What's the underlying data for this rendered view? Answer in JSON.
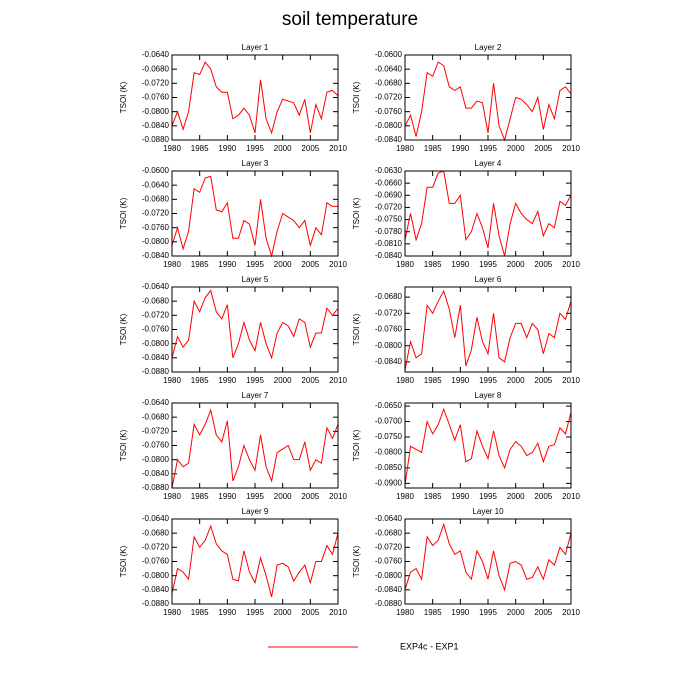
{
  "title": "soil temperature",
  "legend": {
    "name": "EXP4c - EXP1",
    "color": "#ff0000"
  },
  "chart_data": [
    {
      "type": "line",
      "title": "Layer 1",
      "ylabel": "TSOI  (K)",
      "color": "#ff0000",
      "x": [
        1980,
        1981,
        1982,
        1983,
        1984,
        1985,
        1986,
        1987,
        1988,
        1989,
        1990,
        1991,
        1992,
        1993,
        1994,
        1995,
        1996,
        1997,
        1998,
        1999,
        2000,
        2001,
        2002,
        2003,
        2004,
        2005,
        2006,
        2007,
        2008,
        2009,
        2010
      ],
      "values": [
        -0.084,
        -0.08,
        -0.085,
        -0.08,
        -0.069,
        -0.0695,
        -0.066,
        -0.068,
        -0.073,
        -0.0745,
        -0.0745,
        -0.082,
        -0.081,
        -0.079,
        -0.081,
        -0.086,
        -0.071,
        -0.082,
        -0.086,
        -0.08,
        -0.0765,
        -0.077,
        -0.0775,
        -0.081,
        -0.0765,
        -0.086,
        -0.078,
        -0.082,
        -0.0745,
        -0.074,
        -0.0755
      ],
      "xlim": [
        1980,
        2010
      ],
      "xticks": [
        1980,
        1985,
        1990,
        1995,
        2000,
        2005,
        2010
      ],
      "ylim": [
        -0.088,
        -0.064
      ],
      "yticks": [
        {
          "value": -0.064,
          "label": "-0.0640"
        },
        {
          "value": -0.068,
          "label": "-0.0680"
        },
        {
          "value": -0.072,
          "label": "-0.0720"
        },
        {
          "value": -0.076,
          "label": "-0.0760"
        },
        {
          "value": -0.08,
          "label": "-0.0800"
        },
        {
          "value": -0.084,
          "label": "-0.0840"
        },
        {
          "value": -0.088,
          "label": "-0.0880"
        }
      ]
    },
    {
      "type": "line",
      "title": "Layer 2",
      "ylabel": "TSOI  (K)",
      "color": "#ff0000",
      "x": [
        1980,
        1981,
        1982,
        1983,
        1984,
        1985,
        1986,
        1987,
        1988,
        1989,
        1990,
        1991,
        1992,
        1993,
        1994,
        1995,
        1996,
        1997,
        1998,
        1999,
        2000,
        2001,
        2002,
        2003,
        2004,
        2005,
        2006,
        2007,
        2008,
        2009,
        2010
      ],
      "values": [
        -0.08,
        -0.077,
        -0.083,
        -0.076,
        -0.065,
        -0.066,
        -0.062,
        -0.063,
        -0.069,
        -0.07,
        -0.069,
        -0.075,
        -0.075,
        -0.073,
        -0.0735,
        -0.082,
        -0.068,
        -0.08,
        -0.084,
        -0.078,
        -0.072,
        -0.0725,
        -0.074,
        -0.076,
        -0.072,
        -0.081,
        -0.074,
        -0.078,
        -0.07,
        -0.069,
        -0.071
      ],
      "xlim": [
        1980,
        2010
      ],
      "xticks": [
        1980,
        1985,
        1990,
        1995,
        2000,
        2005,
        2010
      ],
      "ylim": [
        -0.084,
        -0.06
      ],
      "yticks": [
        {
          "value": -0.06,
          "label": "-0.0600"
        },
        {
          "value": -0.064,
          "label": "-0.0640"
        },
        {
          "value": -0.068,
          "label": "-0.0680"
        },
        {
          "value": -0.072,
          "label": "-0.0720"
        },
        {
          "value": -0.076,
          "label": "-0.0760"
        },
        {
          "value": -0.08,
          "label": "-0.0800"
        },
        {
          "value": -0.084,
          "label": "-0.0840"
        }
      ]
    },
    {
      "type": "line",
      "title": "Layer 3",
      "ylabel": "TSOI  (K)",
      "color": "#ff0000",
      "x": [
        1980,
        1981,
        1982,
        1983,
        1984,
        1985,
        1986,
        1987,
        1988,
        1989,
        1990,
        1991,
        1992,
        1993,
        1994,
        1995,
        1996,
        1997,
        1998,
        1999,
        2000,
        2001,
        2002,
        2003,
        2004,
        2005,
        2006,
        2007,
        2008,
        2009,
        2010
      ],
      "values": [
        -0.081,
        -0.076,
        -0.082,
        -0.077,
        -0.065,
        -0.066,
        -0.062,
        -0.0615,
        -0.071,
        -0.0715,
        -0.069,
        -0.079,
        -0.079,
        -0.074,
        -0.075,
        -0.081,
        -0.068,
        -0.079,
        -0.084,
        -0.077,
        -0.072,
        -0.073,
        -0.074,
        -0.076,
        -0.074,
        -0.081,
        -0.076,
        -0.078,
        -0.069,
        -0.07,
        -0.07
      ],
      "xlim": [
        1980,
        2010
      ],
      "xticks": [
        1980,
        1985,
        1990,
        1995,
        2000,
        2005,
        2010
      ],
      "ylim": [
        -0.084,
        -0.06
      ],
      "yticks": [
        {
          "value": -0.06,
          "label": "-0.0600"
        },
        {
          "value": -0.064,
          "label": "-0.0640"
        },
        {
          "value": -0.068,
          "label": "-0.0680"
        },
        {
          "value": -0.072,
          "label": "-0.0720"
        },
        {
          "value": -0.076,
          "label": "-0.0760"
        },
        {
          "value": -0.08,
          "label": "-0.0800"
        },
        {
          "value": -0.084,
          "label": "-0.0840"
        }
      ]
    },
    {
      "type": "line",
      "title": "Layer 4",
      "ylabel": "TSOI  (K)",
      "color": "#ff0000",
      "x": [
        1980,
        1981,
        1982,
        1983,
        1984,
        1985,
        1986,
        1987,
        1988,
        1989,
        1990,
        1991,
        1992,
        1993,
        1994,
        1995,
        1996,
        1997,
        1998,
        1999,
        2000,
        2001,
        2002,
        2003,
        2004,
        2005,
        2006,
        2007,
        2008,
        2009,
        2010
      ],
      "values": [
        -0.08,
        -0.0735,
        -0.08,
        -0.076,
        -0.067,
        -0.067,
        -0.0635,
        -0.063,
        -0.071,
        -0.071,
        -0.069,
        -0.08,
        -0.078,
        -0.0735,
        -0.077,
        -0.082,
        -0.071,
        -0.079,
        -0.084,
        -0.076,
        -0.071,
        -0.0735,
        -0.075,
        -0.076,
        -0.073,
        -0.079,
        -0.076,
        -0.077,
        -0.0705,
        -0.0715,
        -0.069
      ],
      "xlim": [
        1980,
        2010
      ],
      "xticks": [
        1980,
        1985,
        1990,
        1995,
        2000,
        2005,
        2010
      ],
      "ylim": [
        -0.084,
        -0.063
      ],
      "yticks": [
        {
          "value": -0.063,
          "label": "-0.0630"
        },
        {
          "value": -0.066,
          "label": "-0.0660"
        },
        {
          "value": -0.069,
          "label": "-0.0690"
        },
        {
          "value": -0.072,
          "label": "-0.0720"
        },
        {
          "value": -0.075,
          "label": "-0.0750"
        },
        {
          "value": -0.078,
          "label": "-0.0780"
        },
        {
          "value": -0.081,
          "label": "-0.0810"
        },
        {
          "value": -0.084,
          "label": "-0.0840"
        }
      ]
    },
    {
      "type": "line",
      "title": "Layer 5",
      "ylabel": "TSOI  (K)",
      "color": "#ff0000",
      "x": [
        1980,
        1981,
        1982,
        1983,
        1984,
        1985,
        1986,
        1987,
        1988,
        1989,
        1990,
        1991,
        1992,
        1993,
        1994,
        1995,
        1996,
        1997,
        1998,
        1999,
        2000,
        2001,
        2002,
        2003,
        2004,
        2005,
        2006,
        2007,
        2008,
        2009,
        2010
      ],
      "values": [
        -0.084,
        -0.078,
        -0.081,
        -0.079,
        -0.068,
        -0.071,
        -0.067,
        -0.065,
        -0.071,
        -0.073,
        -0.069,
        -0.084,
        -0.08,
        -0.074,
        -0.079,
        -0.082,
        -0.074,
        -0.08,
        -0.084,
        -0.077,
        -0.074,
        -0.075,
        -0.078,
        -0.073,
        -0.074,
        -0.081,
        -0.077,
        -0.077,
        -0.07,
        -0.072,
        -0.07
      ],
      "xlim": [
        1980,
        2010
      ],
      "xticks": [
        1980,
        1985,
        1990,
        1995,
        2000,
        2005,
        2010
      ],
      "ylim": [
        -0.088,
        -0.064
      ],
      "yticks": [
        {
          "value": -0.064,
          "label": "-0.0640"
        },
        {
          "value": -0.068,
          "label": "-0.0680"
        },
        {
          "value": -0.072,
          "label": "-0.0720"
        },
        {
          "value": -0.076,
          "label": "-0.0760"
        },
        {
          "value": -0.08,
          "label": "-0.0800"
        },
        {
          "value": -0.084,
          "label": "-0.0840"
        },
        {
          "value": -0.088,
          "label": "-0.0880"
        }
      ]
    },
    {
      "type": "line",
      "title": "Layer 6",
      "ylabel": "TSOI  (K)",
      "color": "#ff0000",
      "x": [
        1980,
        1981,
        1982,
        1983,
        1984,
        1985,
        1986,
        1987,
        1988,
        1989,
        1990,
        1991,
        1992,
        1993,
        1994,
        1995,
        1996,
        1997,
        1998,
        1999,
        2000,
        2001,
        2002,
        2003,
        2004,
        2005,
        2006,
        2007,
        2008,
        2009,
        2010
      ],
      "values": [
        -0.086,
        -0.079,
        -0.083,
        -0.082,
        -0.07,
        -0.072,
        -0.069,
        -0.0665,
        -0.071,
        -0.078,
        -0.07,
        -0.085,
        -0.081,
        -0.073,
        -0.079,
        -0.082,
        -0.072,
        -0.083,
        -0.084,
        -0.078,
        -0.0745,
        -0.0745,
        -0.078,
        -0.0745,
        -0.076,
        -0.082,
        -0.077,
        -0.078,
        -0.072,
        -0.0735,
        -0.069
      ],
      "xlim": [
        1980,
        2010
      ],
      "xticks": [
        1980,
        1985,
        1990,
        1995,
        2000,
        2005,
        2010
      ],
      "ylim": [
        -0.0865,
        -0.0655
      ],
      "yticks": [
        {
          "value": -0.068,
          "label": "-0.0680"
        },
        {
          "value": -0.072,
          "label": "-0.0720"
        },
        {
          "value": -0.076,
          "label": "-0.0760"
        },
        {
          "value": -0.08,
          "label": "-0.0800"
        },
        {
          "value": -0.084,
          "label": "-0.0840"
        }
      ]
    },
    {
      "type": "line",
      "title": "Layer 7",
      "ylabel": "TSOI  (K)",
      "color": "#ff0000",
      "x": [
        1980,
        1981,
        1982,
        1983,
        1984,
        1985,
        1986,
        1987,
        1988,
        1989,
        1990,
        1991,
        1992,
        1993,
        1994,
        1995,
        1996,
        1997,
        1998,
        1999,
        2000,
        2001,
        2002,
        2003,
        2004,
        2005,
        2006,
        2007,
        2008,
        2009,
        2010
      ],
      "values": [
        -0.088,
        -0.08,
        -0.082,
        -0.081,
        -0.07,
        -0.073,
        -0.07,
        -0.066,
        -0.073,
        -0.075,
        -0.069,
        -0.086,
        -0.082,
        -0.076,
        -0.08,
        -0.083,
        -0.073,
        -0.082,
        -0.086,
        -0.078,
        -0.077,
        -0.076,
        -0.08,
        -0.08,
        -0.075,
        -0.083,
        -0.08,
        -0.081,
        -0.071,
        -0.074,
        -0.07
      ],
      "xlim": [
        1980,
        2010
      ],
      "xticks": [
        1980,
        1985,
        1990,
        1995,
        2000,
        2005,
        2010
      ],
      "ylim": [
        -0.088,
        -0.064
      ],
      "yticks": [
        {
          "value": -0.064,
          "label": "-0.0640"
        },
        {
          "value": -0.068,
          "label": "-0.0680"
        },
        {
          "value": -0.072,
          "label": "-0.0720"
        },
        {
          "value": -0.076,
          "label": "-0.0760"
        },
        {
          "value": -0.08,
          "label": "-0.0800"
        },
        {
          "value": -0.084,
          "label": "-0.0840"
        },
        {
          "value": -0.088,
          "label": "-0.0880"
        }
      ]
    },
    {
      "type": "line",
      "title": "Layer 8",
      "ylabel": "TSOI  (K)",
      "color": "#ff0000",
      "x": [
        1980,
        1981,
        1982,
        1983,
        1984,
        1985,
        1986,
        1987,
        1988,
        1989,
        1990,
        1991,
        1992,
        1993,
        1994,
        1995,
        1996,
        1997,
        1998,
        1999,
        2000,
        2001,
        2002,
        2003,
        2004,
        2005,
        2006,
        2007,
        2008,
        2009,
        2010
      ],
      "values": [
        -0.0905,
        -0.078,
        -0.079,
        -0.08,
        -0.07,
        -0.074,
        -0.071,
        -0.066,
        -0.071,
        -0.076,
        -0.071,
        -0.083,
        -0.082,
        -0.073,
        -0.078,
        -0.082,
        -0.073,
        -0.081,
        -0.085,
        -0.079,
        -0.0765,
        -0.078,
        -0.081,
        -0.08,
        -0.077,
        -0.083,
        -0.078,
        -0.0775,
        -0.072,
        -0.074,
        -0.067
      ],
      "xlim": [
        1980,
        2010
      ],
      "xticks": [
        1980,
        1985,
        1990,
        1995,
        2000,
        2005,
        2010
      ],
      "ylim": [
        -0.0915,
        -0.064
      ],
      "yticks": [
        {
          "value": -0.065,
          "label": "-0.0650"
        },
        {
          "value": -0.07,
          "label": "-0.0700"
        },
        {
          "value": -0.075,
          "label": "-0.0750"
        },
        {
          "value": -0.08,
          "label": "-0.0800"
        },
        {
          "value": -0.085,
          "label": "-0.0850"
        },
        {
          "value": -0.09,
          "label": "-0.0900"
        }
      ]
    },
    {
      "type": "line",
      "title": "Layer 9",
      "ylabel": "TSOI  (K)",
      "color": "#ff0000",
      "x": [
        1980,
        1981,
        1982,
        1983,
        1984,
        1985,
        1986,
        1987,
        1988,
        1989,
        1990,
        1991,
        1992,
        1993,
        1994,
        1995,
        1996,
        1997,
        1998,
        1999,
        2000,
        2001,
        2002,
        2003,
        2004,
        2005,
        2006,
        2007,
        2008,
        2009,
        2010
      ],
      "values": [
        -0.085,
        -0.078,
        -0.079,
        -0.081,
        -0.069,
        -0.072,
        -0.07,
        -0.066,
        -0.071,
        -0.073,
        -0.074,
        -0.081,
        -0.0815,
        -0.073,
        -0.079,
        -0.082,
        -0.075,
        -0.08,
        -0.086,
        -0.077,
        -0.0765,
        -0.0775,
        -0.0815,
        -0.079,
        -0.077,
        -0.082,
        -0.076,
        -0.076,
        -0.0715,
        -0.074,
        -0.068
      ],
      "xlim": [
        1980,
        2010
      ],
      "xticks": [
        1980,
        1985,
        1990,
        1995,
        2000,
        2005,
        2010
      ],
      "ylim": [
        -0.088,
        -0.064
      ],
      "yticks": [
        {
          "value": -0.064,
          "label": "-0.0640"
        },
        {
          "value": -0.068,
          "label": "-0.0680"
        },
        {
          "value": -0.072,
          "label": "-0.0720"
        },
        {
          "value": -0.076,
          "label": "-0.0760"
        },
        {
          "value": -0.08,
          "label": "-0.0800"
        },
        {
          "value": -0.084,
          "label": "-0.0840"
        },
        {
          "value": -0.088,
          "label": "-0.0880"
        }
      ]
    },
    {
      "type": "line",
      "title": "Layer 10",
      "ylabel": "TSOI  (K)",
      "color": "#ff0000",
      "x": [
        1980,
        1981,
        1982,
        1983,
        1984,
        1985,
        1986,
        1987,
        1988,
        1989,
        1990,
        1991,
        1992,
        1993,
        1994,
        1995,
        1996,
        1997,
        1998,
        1999,
        2000,
        2001,
        2002,
        2003,
        2004,
        2005,
        2006,
        2007,
        2008,
        2009,
        2010
      ],
      "values": [
        -0.084,
        -0.079,
        -0.078,
        -0.081,
        -0.069,
        -0.0715,
        -0.07,
        -0.0655,
        -0.071,
        -0.074,
        -0.073,
        -0.079,
        -0.081,
        -0.073,
        -0.076,
        -0.081,
        -0.073,
        -0.08,
        -0.084,
        -0.0765,
        -0.076,
        -0.077,
        -0.081,
        -0.0805,
        -0.0775,
        -0.081,
        -0.0755,
        -0.077,
        -0.072,
        -0.074,
        -0.068
      ],
      "xlim": [
        1980,
        2010
      ],
      "xticks": [
        1980,
        1985,
        1990,
        1995,
        2000,
        2005,
        2010
      ],
      "ylim": [
        -0.088,
        -0.064
      ],
      "yticks": [
        {
          "value": -0.064,
          "label": "-0.0640"
        },
        {
          "value": -0.068,
          "label": "-0.0680"
        },
        {
          "value": -0.072,
          "label": "-0.0720"
        },
        {
          "value": -0.076,
          "label": "-0.0760"
        },
        {
          "value": -0.08,
          "label": "-0.0800"
        },
        {
          "value": -0.084,
          "label": "-0.0840"
        },
        {
          "value": -0.088,
          "label": "-0.0880"
        }
      ]
    }
  ]
}
